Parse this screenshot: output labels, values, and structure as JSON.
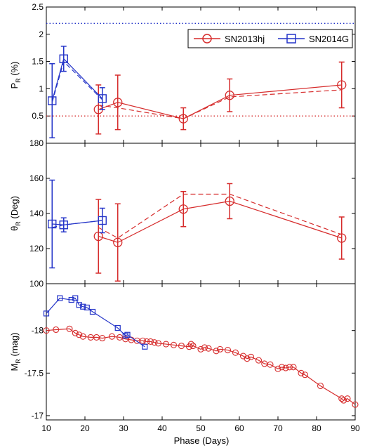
{
  "figure": {
    "xlabel": "Phase (Days)",
    "x_ticks": [
      10,
      20,
      30,
      40,
      50,
      60,
      70,
      80,
      90
    ],
    "xlim": [
      10,
      90
    ]
  },
  "legend": {
    "location": "top-right",
    "entries": [
      {
        "name": "SN2013hj",
        "color": "#d62c2c",
        "marker": "circle"
      },
      {
        "name": "SN2014G",
        "color": "#2434c8",
        "marker": "square"
      }
    ]
  },
  "colors": {
    "sn2013hj": "#d62c2c",
    "sn2014g": "#2434c8"
  },
  "chart_data": [
    {
      "type": "line",
      "ylabel": "P",
      "ylabel_sub": "R",
      "ylabel_suffix": " (%)",
      "ylim": [
        0,
        2.5
      ],
      "y_ticks": [
        0.5,
        1,
        1.5,
        2,
        2.5
      ],
      "y_tick_labels": [
        "0.5",
        "1",
        "1.5",
        "2",
        "2.5"
      ],
      "hlines": [
        {
          "y": 2.2,
          "color": "#2434c8",
          "style": "dotted"
        },
        {
          "y": 0.5,
          "color": "#d62c2c",
          "style": "dotted"
        }
      ],
      "series": [
        {
          "name": "SN2013hj",
          "color": "#d62c2c",
          "marker": "circle",
          "x": [
            23.5,
            28.5,
            45.5,
            57.5,
            86.5
          ],
          "y": [
            0.62,
            0.75,
            0.45,
            0.88,
            1.07
          ],
          "err": [
            0.45,
            0.5,
            0.2,
            0.3,
            0.42
          ],
          "debiased": [
            0.7,
            0.65,
            0.45,
            0.85,
            0.98
          ]
        },
        {
          "name": "SN2014G",
          "color": "#2434c8",
          "marker": "square",
          "x": [
            11.5,
            14.5,
            24.5
          ],
          "y": [
            0.78,
            1.55,
            0.82
          ],
          "err": [
            0.68,
            0.23,
            0.2
          ],
          "debiased": [
            0.75,
            1.5,
            0.8
          ]
        }
      ]
    },
    {
      "type": "line",
      "ylabel": "θ",
      "ylabel_sub": "R",
      "ylabel_suffix": " (Deg)",
      "ylim": [
        100,
        180
      ],
      "y_ticks": [
        100,
        120,
        140,
        160,
        180
      ],
      "y_tick_labels": [
        "100",
        "120",
        "140",
        "160",
        "180"
      ],
      "series": [
        {
          "name": "SN2013hj",
          "color": "#d62c2c",
          "marker": "circle",
          "x": [
            23.5,
            28.5,
            45.5,
            57.5,
            86.5
          ],
          "y": [
            127,
            123.5,
            142.5,
            147,
            126
          ],
          "err": [
            21,
            22,
            10,
            10,
            12
          ],
          "debiased": [
            132,
            126,
            151,
            151,
            128
          ]
        },
        {
          "name": "SN2014G",
          "color": "#2434c8",
          "marker": "square",
          "x": [
            11.5,
            14.5,
            24.5
          ],
          "y": [
            134,
            133.5,
            136
          ],
          "err": [
            25,
            4,
            7
          ],
          "debiased": [
            132,
            133.5,
            136
          ]
        }
      ]
    },
    {
      "type": "line",
      "ylabel": "M",
      "ylabel_sub": "R",
      "ylabel_suffix": " (mag)",
      "y_inverted": true,
      "ylim": [
        -16.95,
        -18.55
      ],
      "y_ticks": [
        -17,
        -17.5,
        -18
      ],
      "y_tick_labels": [
        "-17",
        "-17.5",
        "-18"
      ],
      "series": [
        {
          "name": "SN2013hj",
          "color": "#d62c2c",
          "marker": "circle",
          "x": [
            10.0,
            12.5,
            16.0,
            17.5,
            18.5,
            19.5,
            21.5,
            23.0,
            24.5,
            27.0,
            29.0,
            30.5,
            32.0,
            33.5,
            35.0,
            36.0,
            37.0,
            38.0,
            39.0,
            41.0,
            43.0,
            45.0,
            47.0,
            47.5,
            48.0,
            50.0,
            51.0,
            52.0,
            54.0,
            55.0,
            57.0,
            59.0,
            61.0,
            62.0,
            63.0,
            65.0,
            66.5,
            68.0,
            70.0,
            71.0,
            72.0,
            73.0,
            74.0,
            76.0,
            77.0,
            81.0,
            86.5,
            87.0,
            88.0,
            90.0
          ],
          "y": [
            -18.0,
            -18.01,
            -18.02,
            -17.97,
            -17.95,
            -17.93,
            -17.92,
            -17.92,
            -17.91,
            -17.93,
            -17.92,
            -17.9,
            -17.89,
            -17.88,
            -17.88,
            -17.87,
            -17.87,
            -17.86,
            -17.85,
            -17.84,
            -17.83,
            -17.82,
            -17.81,
            -17.84,
            -17.82,
            -17.78,
            -17.8,
            -17.79,
            -17.76,
            -17.78,
            -17.77,
            -17.74,
            -17.7,
            -17.67,
            -17.69,
            -17.65,
            -17.61,
            -17.6,
            -17.55,
            -17.57,
            -17.56,
            -17.57,
            -17.57,
            -17.5,
            -17.48,
            -17.35,
            -17.2,
            -17.18,
            -17.2,
            -17.13
          ]
        },
        {
          "name": "SN2014G",
          "color": "#2434c8",
          "marker": "square",
          "x": [
            10.0,
            13.5,
            16.5,
            17.5,
            18.5,
            19.5,
            20.5,
            22.0,
            28.5,
            30.5,
            31.0,
            35.5
          ],
          "y": [
            -18.2,
            -18.38,
            -18.36,
            -18.38,
            -18.3,
            -18.28,
            -18.27,
            -18.22,
            -18.03,
            -17.94,
            -17.95,
            -17.81
          ]
        }
      ]
    }
  ]
}
